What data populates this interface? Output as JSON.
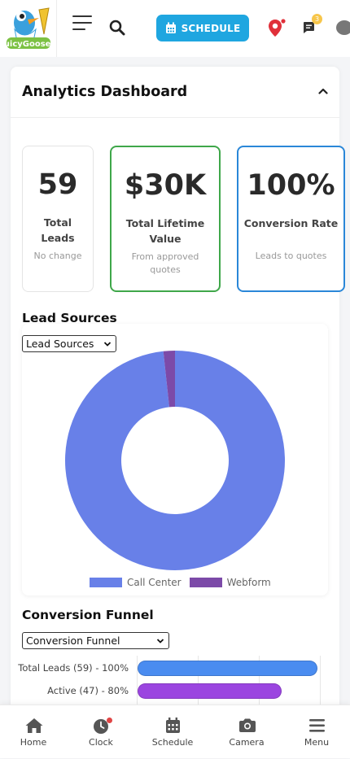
{
  "header": {
    "logo_text": "JuicyGoosey",
    "schedule_label": "SCHEDULE",
    "notification_count": "3",
    "colors": {
      "schedule_button": "#1fa6e0",
      "pin": "#e0303a"
    }
  },
  "dashboard": {
    "title": "Analytics Dashboard",
    "stats": [
      {
        "value": "59",
        "label": "Total Leads",
        "sub": "No change",
        "border_color": "#e4e4e4"
      },
      {
        "value": "$30K",
        "label": "Total Lifetime Value",
        "sub": "From approved quotes",
        "border_color": "#3fa74a"
      },
      {
        "value": "100%",
        "label": "Conversion Rate",
        "sub": "Leads to quotes",
        "border_color": "#2a87d8"
      }
    ],
    "lead_sources": {
      "title": "Lead Sources",
      "select_value": "Lead Sources"
    },
    "conversion_funnel": {
      "title": "Conversion Funnel",
      "select_value": "Conversion Funnel"
    }
  },
  "chart_data": [
    {
      "type": "pie",
      "subtype": "doughnut",
      "categories": [
        "Call Center",
        "Webform"
      ],
      "values": [
        58,
        1
      ],
      "colors": [
        "#6880e8",
        "#7c4aa8"
      ],
      "legend_position": "bottom"
    },
    {
      "type": "bar",
      "orientation": "horizontal",
      "categories": [
        "Total Leads (59) - 100%",
        "Active (47) - 80%"
      ],
      "values": [
        100,
        80
      ],
      "colors": [
        "#4a8cf0",
        "#9b45e0"
      ],
      "xlim": [
        0,
        100
      ]
    }
  ],
  "nav": {
    "items": [
      {
        "label": "Home"
      },
      {
        "label": "Clock"
      },
      {
        "label": "Schedule"
      },
      {
        "label": "Camera"
      },
      {
        "label": "Menu"
      }
    ]
  }
}
